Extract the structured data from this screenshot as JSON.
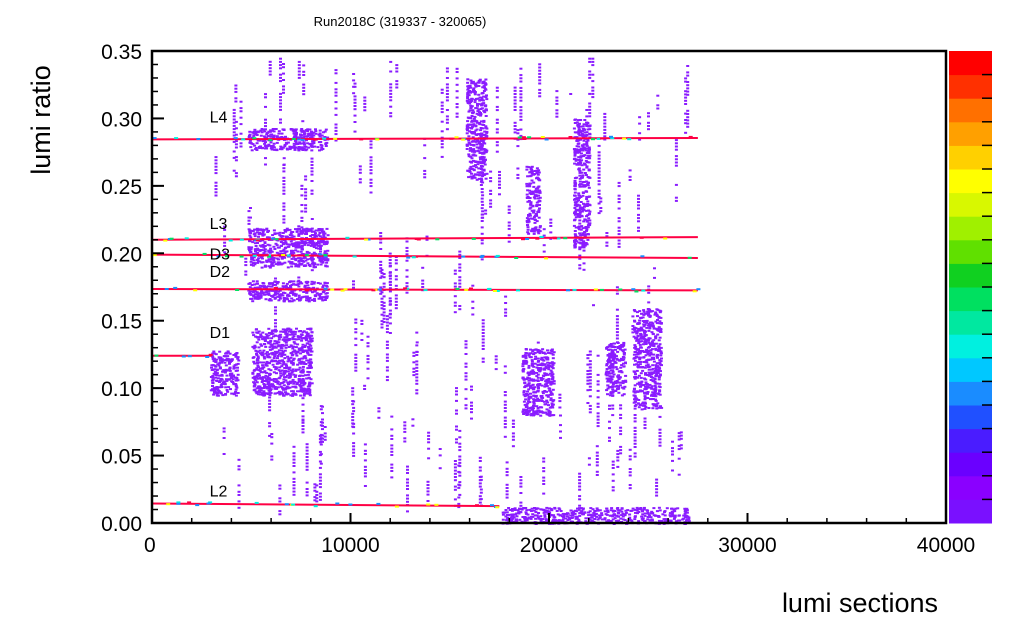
{
  "chart_data": {
    "type": "heatmap",
    "title": "Run2018C (319337 - 320065)",
    "xlabel": "lumi sections",
    "ylabel": "lumi ratio",
    "xlim": [
      0,
      40000
    ],
    "ylim": [
      0,
      0.35
    ],
    "x_ticks": [
      "0",
      "10000",
      "20000",
      "30000",
      "40000"
    ],
    "y_ticks": [
      "0.00",
      "0.05",
      "0.10",
      "0.15",
      "0.20",
      "0.25",
      "0.30",
      "0.35"
    ],
    "x_tick_values": [
      0,
      10000,
      20000,
      30000,
      40000
    ],
    "y_tick_values": [
      0,
      0.05,
      0.1,
      0.15,
      0.2,
      0.25,
      0.3,
      0.35
    ],
    "grid": false,
    "colorbar": "right",
    "palette": [
      "#7a10ff",
      "#8a00ff",
      "#6a00ff",
      "#4a1cff",
      "#2050ff",
      "#1a8cff",
      "#00c8ff",
      "#00f0e0",
      "#00e8a0",
      "#00e060",
      "#10d020",
      "#60e000",
      "#a0f000",
      "#d8f800",
      "#ffff00",
      "#ffd000",
      "#ffa000",
      "#ff7000",
      "#ff3000",
      "#ff0000"
    ],
    "bands": [
      {
        "name": "L4",
        "label_x": 2900,
        "label_y": 0.297,
        "x_start": 0,
        "x_end": 27500,
        "y_start": 0.2845,
        "y_end": 0.2855
      },
      {
        "name": "L3",
        "label_x": 2900,
        "label_y": 0.218,
        "x_start": 0,
        "x_end": 27500,
        "y_start": 0.21,
        "y_end": 0.212
      },
      {
        "name": "D3",
        "label_x": 2900,
        "label_y": 0.1955,
        "x_start": 0,
        "x_end": 27500,
        "y_start": 0.199,
        "y_end": 0.1965
      },
      {
        "name": "D2",
        "label_x": 2900,
        "label_y": 0.1825,
        "x_start": 0,
        "x_end": 27500,
        "y_start": 0.1735,
        "y_end": 0.1725
      },
      {
        "name": "D1",
        "label_x": 2900,
        "label_y": 0.137,
        "x_start": 0,
        "x_end": 3000,
        "y_start": 0.124,
        "y_end": 0.124
      },
      {
        "name": "L2",
        "label_x": 2900,
        "label_y": 0.0195,
        "x_start": 0,
        "x_end": 17500,
        "y_start": 0.0145,
        "y_end": 0.0125
      }
    ],
    "blocks": [
      {
        "x_start": 4800,
        "x_end": 8800,
        "y_start": 0.277,
        "y_end": 0.293
      },
      {
        "x_start": 4800,
        "x_end": 8800,
        "y_start": 0.19,
        "y_end": 0.219
      },
      {
        "x_start": 4800,
        "x_end": 8800,
        "y_start": 0.165,
        "y_end": 0.18
      },
      {
        "x_start": 5000,
        "x_end": 8000,
        "y_start": 0.095,
        "y_end": 0.145
      },
      {
        "x_start": 2900,
        "x_end": 4300,
        "y_start": 0.095,
        "y_end": 0.128
      },
      {
        "x_start": 15800,
        "x_end": 16800,
        "y_start": 0.255,
        "y_end": 0.33
      },
      {
        "x_start": 18800,
        "x_end": 19500,
        "y_start": 0.215,
        "y_end": 0.265
      },
      {
        "x_start": 21200,
        "x_end": 22000,
        "y_start": 0.205,
        "y_end": 0.3
      },
      {
        "x_start": 18600,
        "x_end": 20200,
        "y_start": 0.08,
        "y_end": 0.13
      },
      {
        "x_start": 22800,
        "x_end": 23800,
        "y_start": 0.095,
        "y_end": 0.135
      },
      {
        "x_start": 24200,
        "x_end": 25600,
        "y_start": 0.085,
        "y_end": 0.16
      },
      {
        "x_start": 17600,
        "x_end": 27000,
        "y_start": 0.0,
        "y_end": 0.012
      }
    ]
  }
}
